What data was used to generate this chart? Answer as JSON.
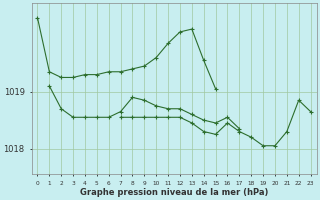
{
  "title": "Graphe pression niveau de la mer (hPa)",
  "background_color": "#c8eef0",
  "line_color": "#2d6e2d",
  "grid_color": "#a0c8a0",
  "yticks": [
    1018,
    1019
  ],
  "xlim": [
    -0.5,
    23.5
  ],
  "ylim": [
    1017.55,
    1020.55
  ],
  "line1_x": [
    0,
    1,
    2,
    3,
    4,
    5,
    6,
    7,
    8,
    9,
    10,
    11,
    12,
    13,
    14,
    15
  ],
  "line1_y": [
    1020.3,
    1019.35,
    1019.25,
    1019.25,
    1019.3,
    1019.3,
    1019.35,
    1019.35,
    1019.4,
    1019.45,
    1019.6,
    1019.85,
    1020.05,
    1020.1,
    1019.55,
    1019.05
  ],
  "line2_x": [
    1,
    2,
    3,
    4,
    5,
    6,
    7,
    8,
    9,
    10,
    11,
    12,
    13,
    14,
    15,
    16,
    17
  ],
  "line2_y": [
    1019.1,
    1018.7,
    1018.55,
    1018.55,
    1018.55,
    1018.55,
    1018.65,
    1018.9,
    1018.85,
    1018.75,
    1018.7,
    1018.7,
    1018.6,
    1018.5,
    1018.45,
    1018.55,
    1018.35
  ],
  "line3_x": [
    7,
    8,
    9,
    10,
    11,
    12,
    13,
    14,
    15,
    16,
    17,
    18,
    19,
    20,
    21,
    22,
    23
  ],
  "line3_y": [
    1018.55,
    1018.55,
    1018.55,
    1018.55,
    1018.55,
    1018.55,
    1018.45,
    1018.3,
    1018.25,
    1018.45,
    1018.3,
    1018.2,
    1018.05,
    1018.05,
    1018.3,
    1018.85,
    1018.65
  ]
}
